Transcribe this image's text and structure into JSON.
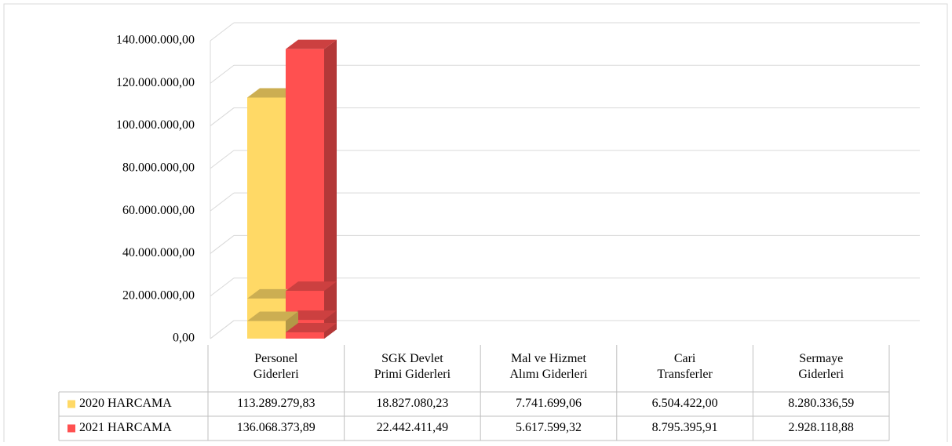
{
  "chart_data": {
    "type": "bar3d",
    "categories": [
      "Personel\nGiderleri",
      "SGK Devlet\nPrimi Giderleri",
      "Mal ve Hizmet\nAlımı Giderleri",
      "Cari\nTransferler",
      "Sermaye\nGiderleri"
    ],
    "series": [
      {
        "name": "2020 HARCAMA",
        "color": "#ffd966",
        "values": [
          113289279.83,
          18827080.23,
          7741699.06,
          6504422.0,
          8280336.59
        ],
        "value_labels": [
          "113.289.279,83",
          "18.827.080,23",
          "7.741.699,06",
          "6.504.422,00",
          "8.280.336,59"
        ]
      },
      {
        "name": "2021 HARCAMA",
        "color": "#ff5050",
        "values": [
          136068373.89,
          22442411.49,
          5617599.32,
          8795395.91,
          2928118.88
        ],
        "value_labels": [
          "136.068.373,89",
          "22.442.411,49",
          "5.617.599,32",
          "8.795.395,91",
          "2.928.118,88"
        ]
      }
    ],
    "ylim": [
      0,
      140000000
    ],
    "yticks": [
      {
        "value": 0,
        "label": "0,00"
      },
      {
        "value": 20000000,
        "label": "20.000.000,00"
      },
      {
        "value": 40000000,
        "label": "40.000.000,00"
      },
      {
        "value": 60000000,
        "label": "60.000.000,00"
      },
      {
        "value": 80000000,
        "label": "80.000.000,00"
      },
      {
        "value": 100000000,
        "label": "100.000.000,00"
      },
      {
        "value": 120000000,
        "label": "120.000.000,00"
      },
      {
        "value": 140000000,
        "label": "140.000.000,00"
      }
    ],
    "grid": true,
    "legend": "table"
  }
}
